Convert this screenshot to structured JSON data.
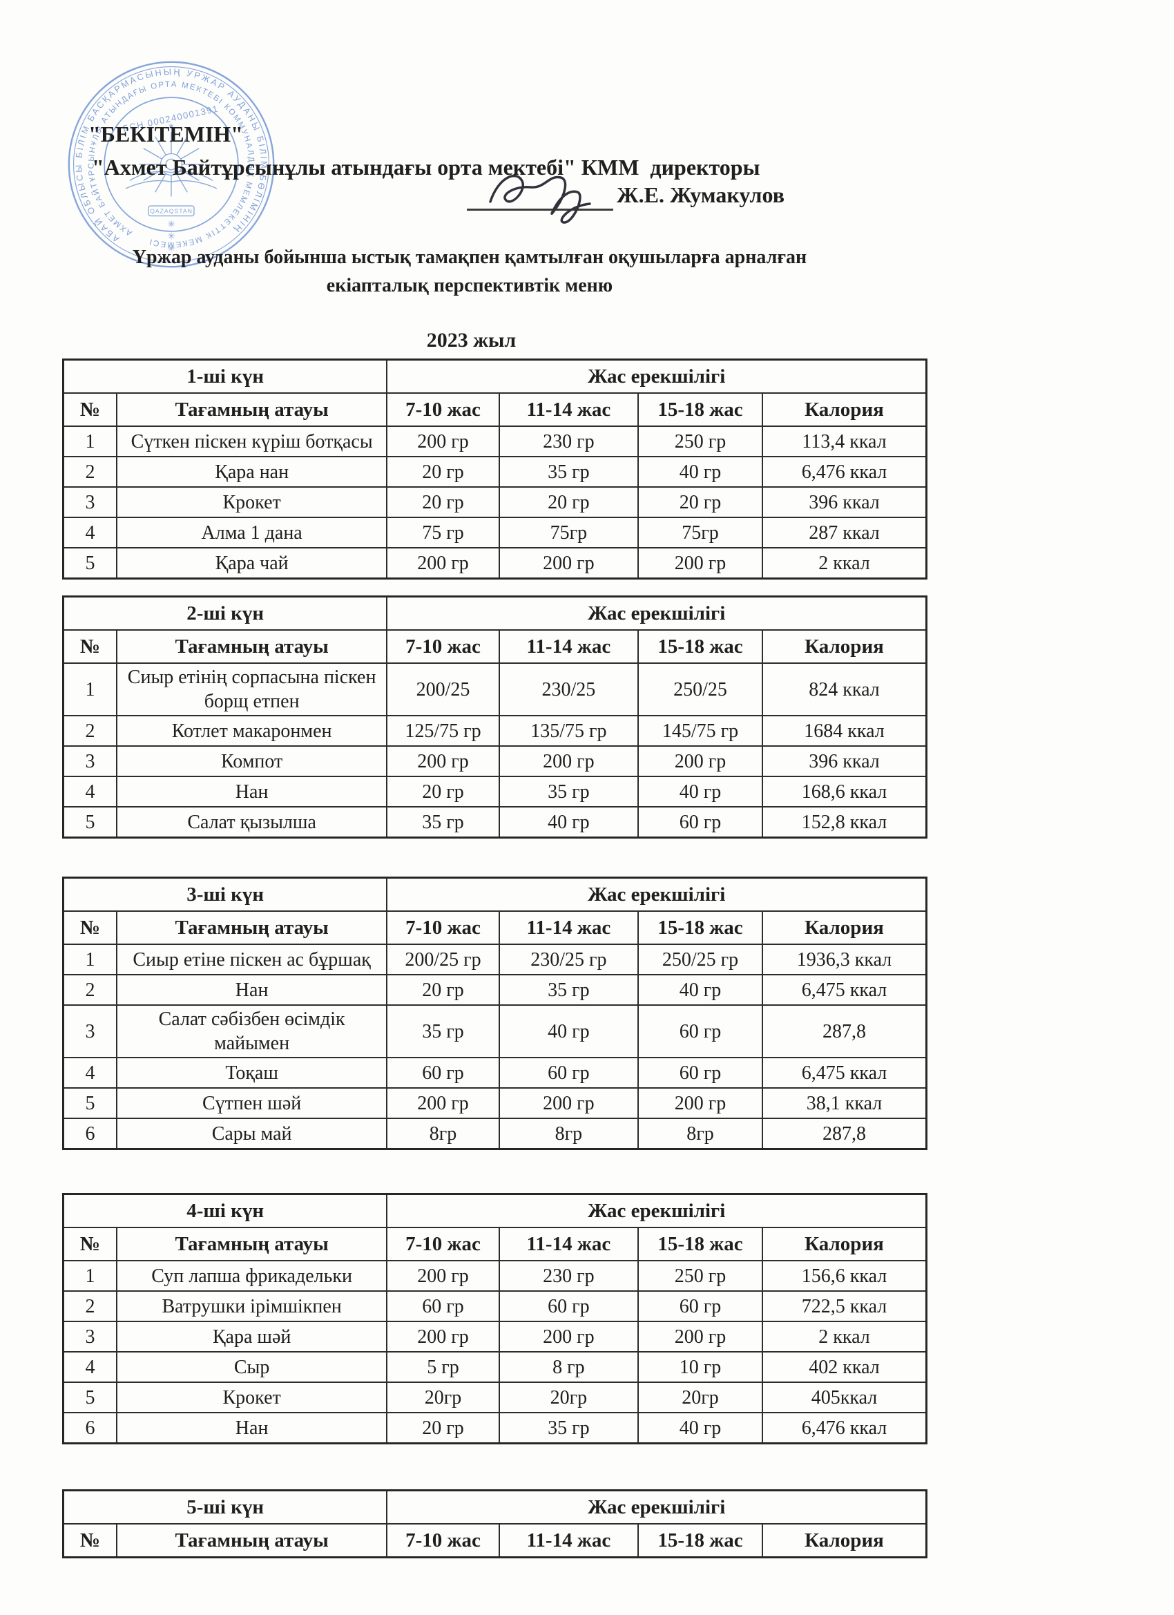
{
  "header": {
    "approval": "\"БЕКІТЕМІН\"",
    "director_line": "\"Ахмет Байтұрсынұлы атындағы орта мектебі\" КММ  директоры",
    "signature_name": "Ж.Е. Жумакулов",
    "subtitle_line1": "Үржар ауданы бойынша ыстық тамақпен қамтылған оқушыларға арналған",
    "subtitle_line2": "екіапталық перспективтік меню",
    "year_title": "2023 жыл"
  },
  "stamp": {
    "outer_ring": "АБАЙ ОБЛЫСЫ БІЛІМ БАСҚАРМАСЫНЫҢ УРЖАР АУДАНЫ БІЛІМ БӨЛІМІНІҢ",
    "inner_ring": "АХМЕТ БАЙТҰРСЫНҰЛЫ АТЫНДАҒЫ ОРТА МЕКТЕБІ КОММУНАЛДЫҚ МЕМЛЕКЕТТІК МЕКЕМЕСІ",
    "bin": "БСН 000240001391",
    "emblem_caption": "QAZAQSTAN",
    "color": "#6d92d4"
  },
  "table_headers": {
    "age_group_label": "Жас ерекшілігі",
    "columns": [
      "№",
      "Тағамның атауы",
      "7-10 жас",
      "11-14 жас",
      "15-18 жас",
      "Калория"
    ]
  },
  "tables": [
    {
      "day_label": "1-ші күн",
      "rows": [
        [
          "1",
          "Сүткен піскен күріш ботқасы",
          "200 гр",
          "230 гр",
          "250 гр",
          "113,4 ккал"
        ],
        [
          "2",
          "Қара нан",
          "20 гр",
          "35 гр",
          "40 гр",
          "6,476 ккал"
        ],
        [
          "3",
          "Крокет",
          "20 гр",
          "20 гр",
          "20 гр",
          "396 ккал"
        ],
        [
          "4",
          "Алма 1 дана",
          "75 гр",
          "75гр",
          "75гр",
          "287 ккал"
        ],
        [
          "5",
          "Қара чай",
          "200 гр",
          "200 гр",
          "200 гр",
          "2 ккал"
        ]
      ]
    },
    {
      "day_label": "2-ші күн",
      "rows": [
        [
          "1",
          "Сиыр етінің сорпасына піскен борщ етпен",
          "200/25",
          "230/25",
          "250/25",
          "824 ккал"
        ],
        [
          "2",
          "Котлет макаронмен",
          "125/75 гр",
          "135/75 гр",
          "145/75 гр",
          "1684 ккал"
        ],
        [
          "3",
          "Компот",
          "200 гр",
          "200 гр",
          "200 гр",
          "396 ккал"
        ],
        [
          "4",
          "Нан",
          "20 гр",
          "35 гр",
          "40 гр",
          "168,6 ккал"
        ],
        [
          "5",
          "Салат қызылша",
          "35 гр",
          "40 гр",
          "60 гр",
          "152,8 ккал"
        ]
      ]
    },
    {
      "day_label": "3-ші күн",
      "rows": [
        [
          "1",
          "Сиыр етіне піскен ас бұршақ",
          "200/25 гр",
          "230/25 гр",
          "250/25 гр",
          "1936,3 ккал"
        ],
        [
          "2",
          "Нан",
          "20 гр",
          "35 гр",
          "40 гр",
          "6,475 ккал"
        ],
        [
          "3",
          "Салат сәбізбен өсімдік майымен",
          "35 гр",
          "40 гр",
          "60 гр",
          "287,8"
        ],
        [
          "4",
          "Тоқаш",
          "60 гр",
          "60 гр",
          "60 гр",
          "6,475 ккал"
        ],
        [
          "5",
          "Сүтпен шәй",
          "200 гр",
          "200 гр",
          "200 гр",
          "38,1 ккал"
        ],
        [
          "6",
          "Сары май",
          "8гр",
          "8гр",
          "8гр",
          "287,8"
        ]
      ]
    },
    {
      "day_label": "4-ші күн",
      "rows": [
        [
          "1",
          "Суп лапша фрикадельки",
          "200 гр",
          "230 гр",
          "250 гр",
          "156,6 ккал"
        ],
        [
          "2",
          "Ватрушки ірімшікпен",
          "60 гр",
          "60 гр",
          "60 гр",
          "722,5 ккал"
        ],
        [
          "3",
          "Қара шәй",
          "200 гр",
          "200 гр",
          "200 гр",
          "2 ккал"
        ],
        [
          "4",
          "Сыр",
          "5 гр",
          "8 гр",
          "10 гр",
          "402 ккал"
        ],
        [
          "5",
          "Крокет",
          "20гр",
          "20гр",
          "20гр",
          "405ккал"
        ],
        [
          "6",
          "Нан",
          "20 гр",
          "35 гр",
          "40 гр",
          "6,476 ккал"
        ]
      ]
    },
    {
      "day_label": "5-ші күн",
      "rows": []
    }
  ]
}
